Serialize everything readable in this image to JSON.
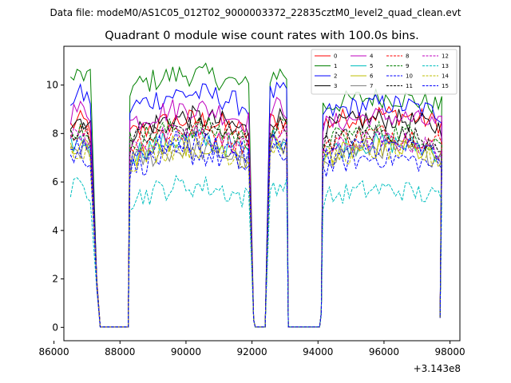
{
  "suptitle": "Data file: modeM0/AS1C05_012T02_9000003372_22835cztM0_level2_quad_clean.evt",
  "chart_data": {
    "type": "line",
    "title": "Quadrant 0 module wise count rates with 100.0s bins.",
    "xlabel": "",
    "ylabel": "",
    "x_offset_label": "+3.143e8",
    "xlim": [
      86300,
      98300
    ],
    "ylim": [
      -0.55,
      11.6
    ],
    "xticks": [
      86000,
      88000,
      90000,
      92000,
      94000,
      96000,
      98000
    ],
    "xtick_labels": [
      "86000",
      "88000",
      "90000",
      "92000",
      "94000",
      "96000",
      "98000"
    ],
    "yticks": [
      0,
      2,
      4,
      6,
      8,
      10
    ],
    "ytick_labels": [
      "0",
      "2",
      "4",
      "6",
      "8",
      "10"
    ],
    "legend_position": "upper-right",
    "segments": [
      [
        86500,
        87100
      ],
      [
        88300,
        91950
      ],
      [
        92550,
        93050
      ],
      [
        94150,
        97750
      ]
    ],
    "gaps": [
      [
        87200,
        88300
      ],
      [
        91950,
        92550
      ],
      [
        93050,
        94150
      ]
    ],
    "series": [
      {
        "name": "0",
        "color": "#ff0000",
        "style": "solid",
        "level": 8.3,
        "level_seg2": 8.4
      },
      {
        "name": "1",
        "color": "#008000",
        "style": "solid",
        "level": 10.2,
        "level_seg2": 9.1
      },
      {
        "name": "2",
        "color": "#0000ff",
        "style": "solid",
        "level": 9.4,
        "level_seg2": 8.8
      },
      {
        "name": "3",
        "color": "#000000",
        "style": "solid",
        "level": 8.4,
        "level_seg2": 8.2
      },
      {
        "name": "4",
        "color": "#bf00bf",
        "style": "solid",
        "level": 8.8,
        "level_seg2": 8.3
      },
      {
        "name": "5",
        "color": "#00bfbf",
        "style": "solid",
        "level": 7.5,
        "level_seg2": 7.2
      },
      {
        "name": "6",
        "color": "#bfbf00",
        "style": "solid",
        "level": 7.3,
        "level_seg2": 7.0
      },
      {
        "name": "7",
        "color": "#808080",
        "style": "solid",
        "level": 7.1,
        "level_seg2": 7.0
      },
      {
        "name": "8",
        "color": "#ff0000",
        "style": "dashed",
        "level": 7.9,
        "level_seg2": 7.6
      },
      {
        "name": "9",
        "color": "#008000",
        "style": "dashed",
        "level": 8.0,
        "level_seg2": 7.7
      },
      {
        "name": "10",
        "color": "#0000ff",
        "style": "dashed",
        "level": 6.9,
        "level_seg2": 6.6
      },
      {
        "name": "11",
        "color": "#000000",
        "style": "dashed",
        "level": 8.0,
        "level_seg2": 7.6
      },
      {
        "name": "12",
        "color": "#bf00bf",
        "style": "dashed",
        "level": 7.7,
        "level_seg2": 7.3
      },
      {
        "name": "13",
        "color": "#00bfbf",
        "style": "dashed",
        "level": 5.6,
        "level_seg2": 5.3
      },
      {
        "name": "14",
        "color": "#bfbf00",
        "style": "dashed",
        "level": 7.2,
        "level_seg2": 6.9
      },
      {
        "name": "15",
        "color": "#0000ff",
        "style": "dashed",
        "level": 7.4,
        "level_seg2": 7.1
      }
    ]
  }
}
